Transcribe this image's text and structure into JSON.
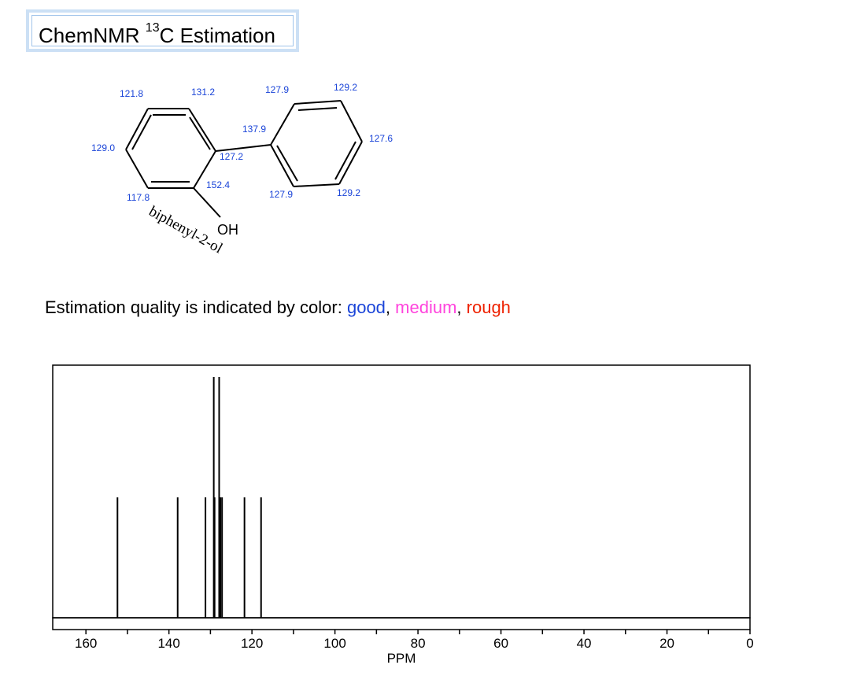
{
  "title": {
    "prefix": "ChemNMR ",
    "superscript": "13",
    "suffix": "C Estimation"
  },
  "molecule": {
    "name": "biphenyl-2-ol",
    "oh_label": "OH",
    "shift_labels": [
      {
        "id": "c1",
        "text": "121.8"
      },
      {
        "id": "c2",
        "text": "131.2"
      },
      {
        "id": "c3",
        "text": "129.0"
      },
      {
        "id": "c4",
        "text": "127.2"
      },
      {
        "id": "c5",
        "text": "117.8"
      },
      {
        "id": "c6",
        "text": "152.4"
      },
      {
        "id": "c7",
        "text": "137.9"
      },
      {
        "id": "c8",
        "text": "127.9"
      },
      {
        "id": "c9",
        "text": "129.2"
      },
      {
        "id": "c10",
        "text": "127.6"
      },
      {
        "id": "c11",
        "text": "127.9"
      },
      {
        "id": "c12",
        "text": "129.2"
      }
    ],
    "label_color": "#1a44d8"
  },
  "quality_legend": {
    "text": "Estimation quality is indicated by color: ",
    "good": "good",
    "medium": "medium",
    "rough": "rough",
    "separator": ", ",
    "colors": {
      "good": "#1a44d8",
      "medium": "#ff44dd",
      "rough": "#ee2200"
    }
  },
  "chart_data": {
    "type": "bar",
    "xlabel": "PPM",
    "ylabel": "",
    "xlim": [
      168,
      0
    ],
    "x_ticks": [
      160,
      140,
      120,
      100,
      80,
      60,
      40,
      20,
      0
    ],
    "peaks": [
      {
        "ppm": 152.4,
        "intensity": 1
      },
      {
        "ppm": 137.9,
        "intensity": 1
      },
      {
        "ppm": 131.2,
        "intensity": 1
      },
      {
        "ppm": 129.2,
        "intensity": 2
      },
      {
        "ppm": 129.0,
        "intensity": 1
      },
      {
        "ppm": 127.9,
        "intensity": 2
      },
      {
        "ppm": 127.6,
        "intensity": 1
      },
      {
        "ppm": 127.2,
        "intensity": 1
      },
      {
        "ppm": 121.8,
        "intensity": 1
      },
      {
        "ppm": 117.8,
        "intensity": 1
      }
    ],
    "ylim": [
      0,
      2
    ],
    "grid": false
  }
}
